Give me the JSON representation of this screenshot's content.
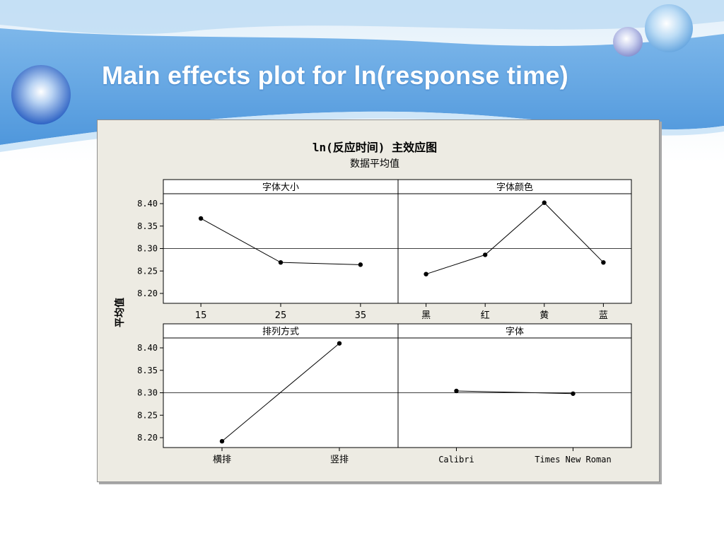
{
  "slide": {
    "title": "Main effects plot for ln(response time)"
  },
  "colors": {
    "banner_blue": "#5ea4e3",
    "banner_light": "#cfe5f7",
    "panel_bg": "#edebe3",
    "line": "#000000"
  },
  "chart_data": {
    "type": "line",
    "title": "ln(反应时间) 主效应图",
    "subtitle": "数据平均值",
    "ylabel": "平均值",
    "grid": false,
    "reference_line": 8.3,
    "ylim": [
      8.18,
      8.43
    ],
    "yticks": [
      "8.40",
      "8.35",
      "8.30",
      "8.25",
      "8.20"
    ],
    "panels": [
      {
        "name": "字体大小",
        "categories": [
          "15",
          "25",
          "35"
        ],
        "values": [
          8.367,
          8.269,
          8.264
        ]
      },
      {
        "name": "字体颜色",
        "categories": [
          "黑",
          "红",
          "黄",
          "蓝"
        ],
        "values": [
          8.243,
          8.286,
          8.402,
          8.269
        ]
      },
      {
        "name": "排列方式",
        "categories": [
          "横排",
          "竖排"
        ],
        "values": [
          8.192,
          8.41
        ]
      },
      {
        "name": "字体",
        "categories": [
          "Calibri",
          "Times New Roman"
        ],
        "values": [
          8.304,
          8.298
        ]
      }
    ]
  }
}
